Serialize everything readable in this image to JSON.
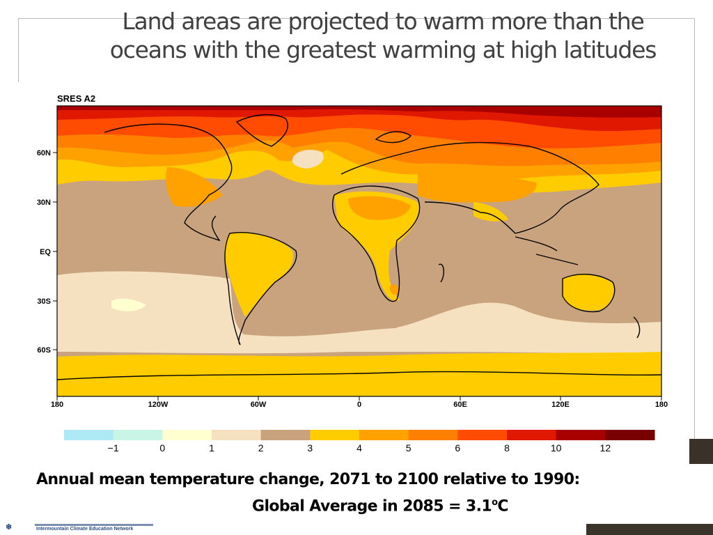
{
  "slide": {
    "title_lines": [
      "Land areas are projected to warm more than the",
      "oceans with the greatest warming at high latitudes"
    ],
    "caption_line1": "Annual mean temperature change, 2071 to 2100 relative to 1990:",
    "caption_line2_prefix": "Global Average in 2085  = 3.1",
    "caption_line2_sup": "o",
    "caption_line2_suffix": "C",
    "footer_org": "Intermountain Climate Education Network"
  },
  "map": {
    "scenario_label": "SRES A2",
    "lat_ticks": [
      "60N",
      "30N",
      "EQ",
      "30S",
      "60S"
    ],
    "lon_ticks": [
      "180",
      "120W",
      "60W",
      "0",
      "60E",
      "120E",
      "180"
    ],
    "colors": {
      "c_m1": "#aee9f5",
      "c_0": "#c8f5e6",
      "c_1": "#ffffcf",
      "c_2": "#f5e1c0",
      "c_3": "#c9a37e",
      "c_4": "#ffcc00",
      "c_5": "#ffa200",
      "c_6": "#ff8000",
      "c_8": "#ff4c00",
      "c_10": "#e01800",
      "c_12": "#a80000",
      "c_max": "#780000"
    }
  },
  "colorbar": {
    "labels": [
      "−1",
      "0",
      "1",
      "2",
      "3",
      "4",
      "5",
      "6",
      "8",
      "10",
      "12"
    ],
    "colors": [
      "#aee9f5",
      "#c8f5e6",
      "#ffffcf",
      "#f5e1c0",
      "#c9a37e",
      "#ffcc00",
      "#ffa200",
      "#ff8000",
      "#ff4c00",
      "#e01800",
      "#a80000",
      "#780000"
    ]
  }
}
